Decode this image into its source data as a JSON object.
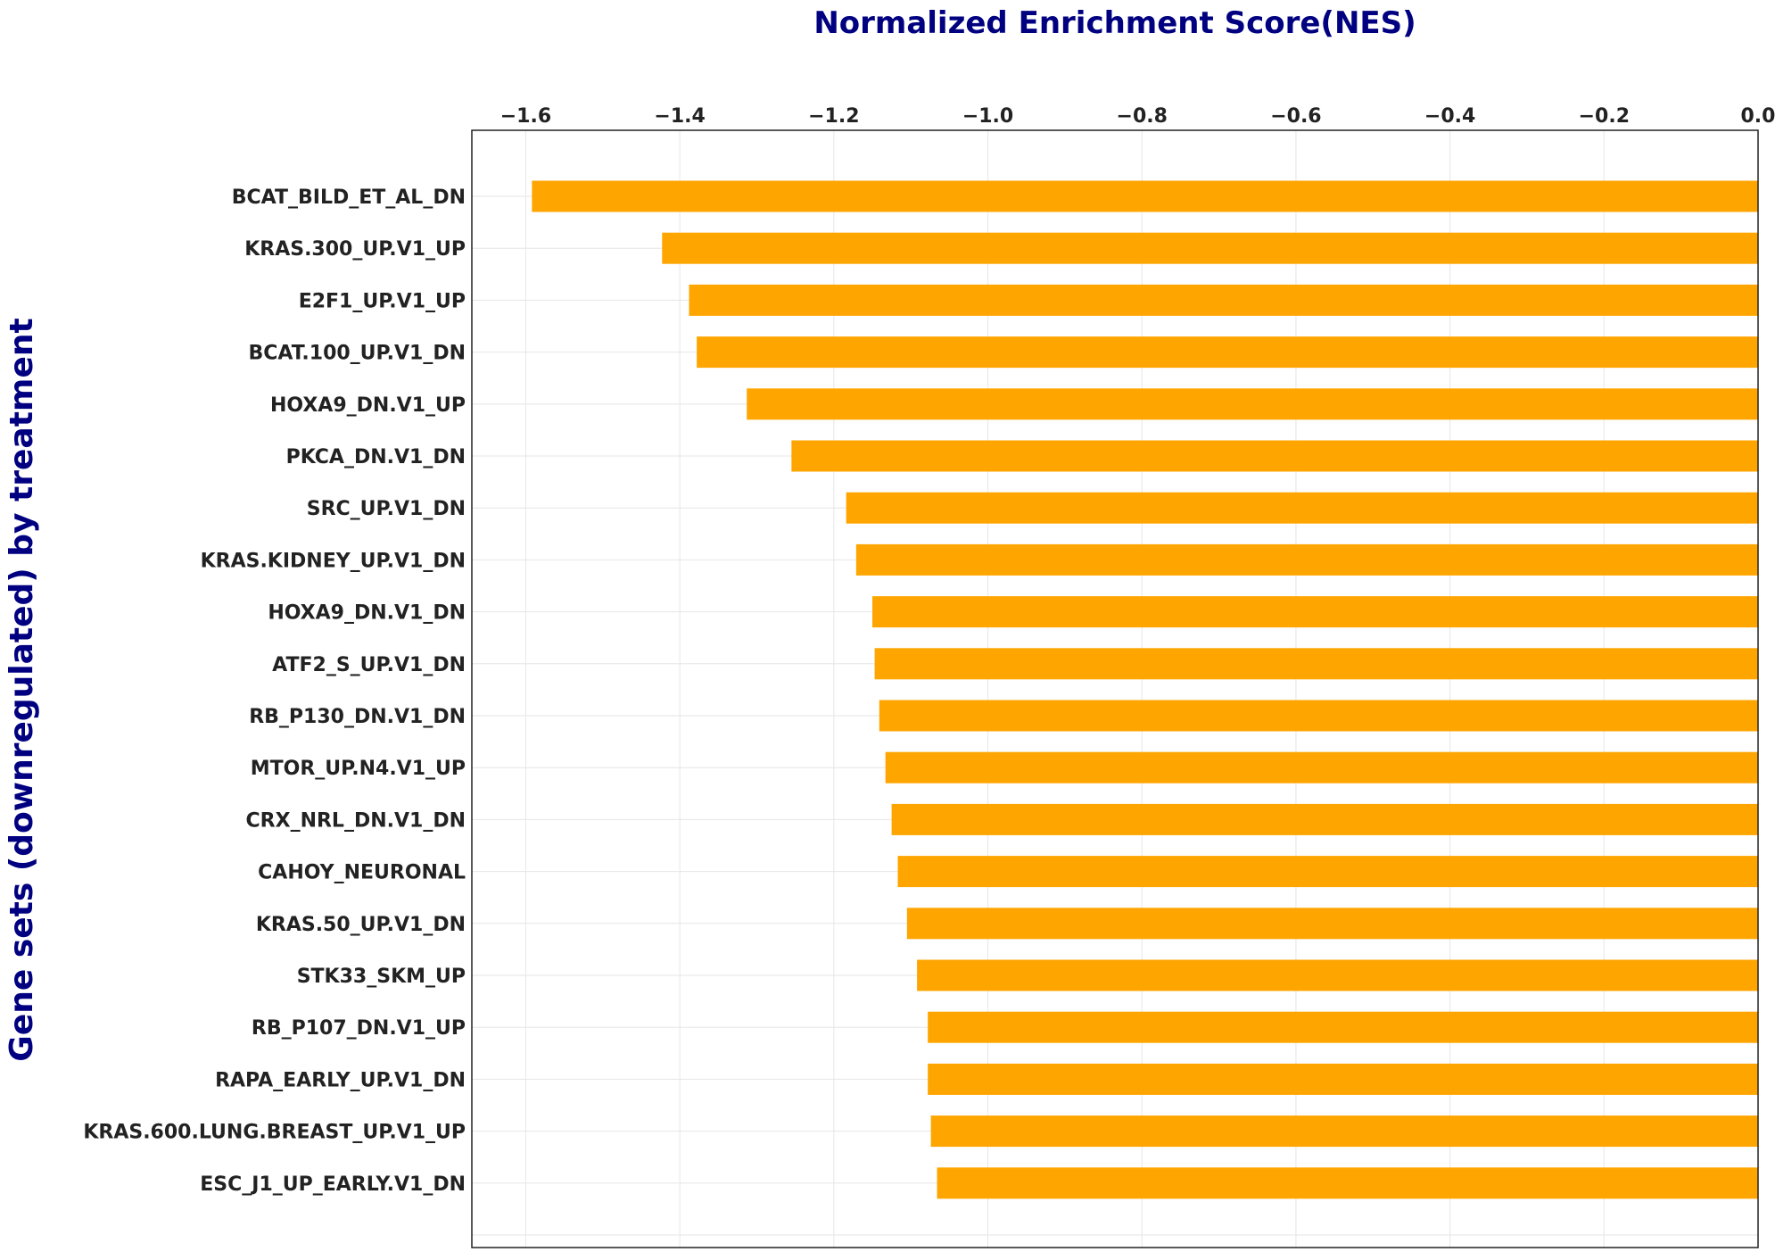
{
  "chart_data": {
    "type": "bar",
    "orientation": "horizontal",
    "title": "Normalized Enrichment Score(NES)",
    "xlabel": "",
    "ylabel": "Gene sets (downregulated) by treatment",
    "xlim": [
      -1.67,
      0.0
    ],
    "x_ticks": [
      -1.6,
      -1.4,
      -1.2,
      -1.0,
      -0.8,
      -0.6,
      -0.4,
      -0.2,
      0.0
    ],
    "x_tick_labels": [
      "−1.6",
      "−1.4",
      "−1.2",
      "−1.0",
      "−0.8",
      "−0.6",
      "−0.4",
      "−0.2",
      "0.0"
    ],
    "x_axis_position": "top",
    "grid": true,
    "bar_color": "#FFA500",
    "categories": [
      "BCAT_BILD_ET_AL_DN",
      "KRAS.300_UP.V1_UP",
      "E2F1_UP.V1_UP",
      "BCAT.100_UP.V1_DN",
      "HOXA9_DN.V1_UP",
      "PKCA_DN.V1_DN",
      "SRC_UP.V1_DN",
      "KRAS.KIDNEY_UP.V1_DN",
      "HOXA9_DN.V1_DN",
      "ATF2_S_UP.V1_DN",
      "RB_P130_DN.V1_DN",
      "MTOR_UP.N4.V1_UP",
      "CRX_NRL_DN.V1_DN",
      "CAHOY_NEURONAL",
      "KRAS.50_UP.V1_DN",
      "STK33_SKM_UP",
      "RB_P107_DN.V1_UP",
      "RAPA_EARLY_UP.V1_DN",
      "KRAS.600.LUNG.BREAST_UP.V1_UP",
      "ESC_J1_UP_EARLY.V1_DN"
    ],
    "values": [
      -1.592,
      -1.423,
      -1.388,
      -1.378,
      -1.313,
      -1.255,
      -1.184,
      -1.171,
      -1.15,
      -1.147,
      -1.141,
      -1.133,
      -1.125,
      -1.117,
      -1.105,
      -1.092,
      -1.078,
      -1.078,
      -1.074,
      -1.066
    ]
  }
}
